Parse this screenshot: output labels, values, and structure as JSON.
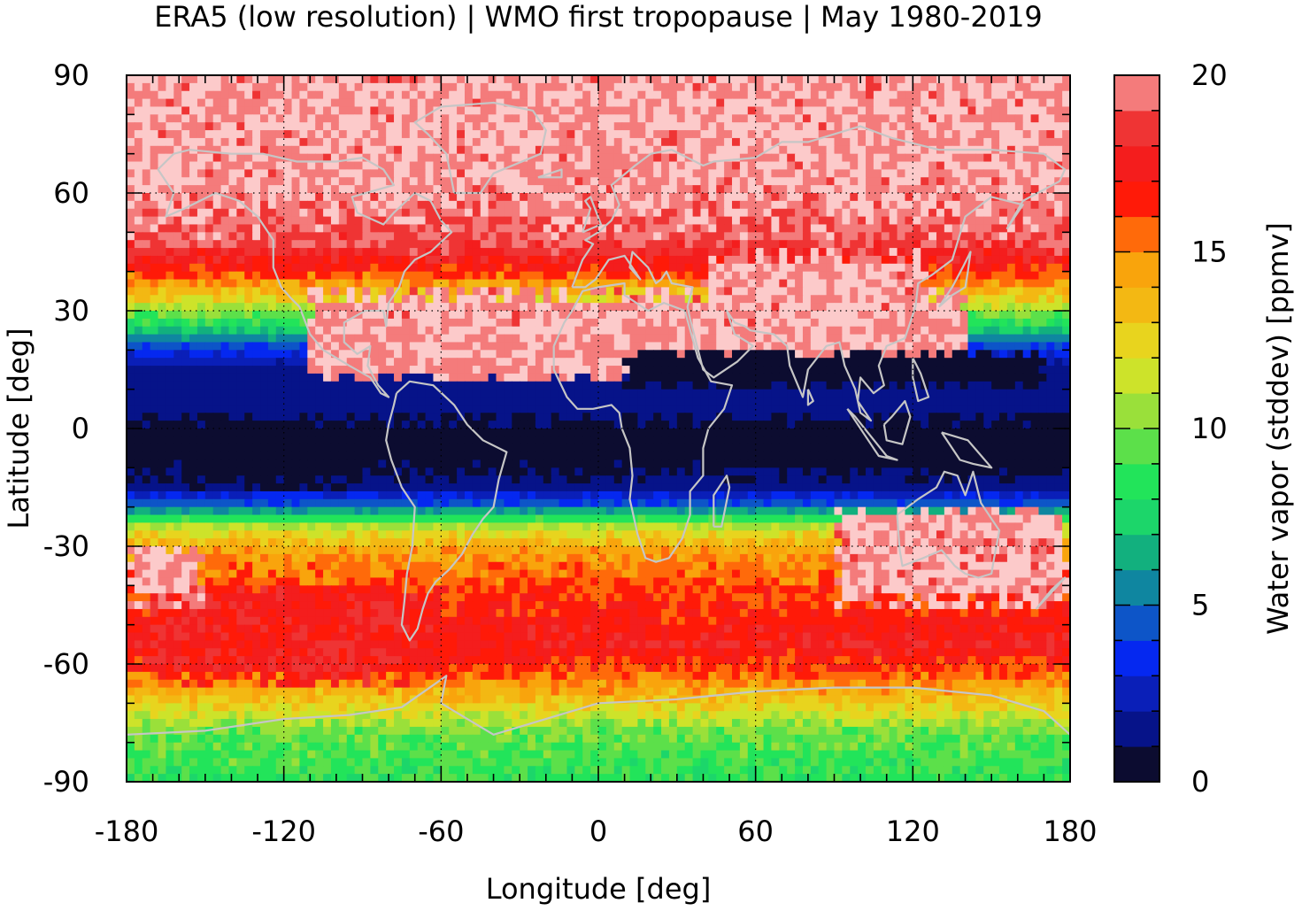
{
  "chart_data": {
    "type": "heatmap",
    "title": "ERA5 (low resolution) | WMO first tropopause | May 1980-2019",
    "xlabel": "Longitude [deg]",
    "ylabel": "Latitude [deg]",
    "xlim": [
      -180,
      180
    ],
    "ylim": [
      -90,
      90
    ],
    "xticks": [
      -180,
      -120,
      -60,
      0,
      60,
      120,
      180
    ],
    "yticks": [
      90,
      60,
      30,
      0,
      -30,
      -60,
      -90
    ],
    "grid": true,
    "coastlines": true,
    "colorbar": {
      "label": "Water vapor (stddev) [ppmv]",
      "range": [
        0,
        20
      ],
      "ticks": [
        20,
        15,
        10,
        5,
        0
      ],
      "levels": [
        {
          "from": 0,
          "to": 1,
          "color": "#0c0c30"
        },
        {
          "from": 1,
          "to": 2,
          "color": "#061389"
        },
        {
          "from": 2,
          "to": 3,
          "color": "#0a1fb8"
        },
        {
          "from": 3,
          "to": 4,
          "color": "#0528f0"
        },
        {
          "from": 4,
          "to": 5,
          "color": "#0d55c8"
        },
        {
          "from": 5,
          "to": 6,
          "color": "#0f86a0"
        },
        {
          "from": 6,
          "to": 7,
          "color": "#12b07e"
        },
        {
          "from": 7,
          "to": 8,
          "color": "#1cd66a"
        },
        {
          "from": 8,
          "to": 9,
          "color": "#22e45a"
        },
        {
          "from": 9,
          "to": 10,
          "color": "#5ce04a"
        },
        {
          "from": 10,
          "to": 11,
          "color": "#9ae03a"
        },
        {
          "from": 11,
          "to": 12,
          "color": "#cde32a"
        },
        {
          "from": 12,
          "to": 13,
          "color": "#e8d41e"
        },
        {
          "from": 13,
          "to": 14,
          "color": "#f3b813"
        },
        {
          "from": 14,
          "to": 15,
          "color": "#f9a40c"
        },
        {
          "from": 15,
          "to": 16,
          "color": "#ff6a0a"
        },
        {
          "from": 16,
          "to": 17,
          "color": "#ff1a08"
        },
        {
          "from": 17,
          "to": 18,
          "color": "#f41d1d"
        },
        {
          "from": 18,
          "to": 19,
          "color": "#ef3434"
        },
        {
          "from": 19,
          "to": 20,
          "color": "#f47b7b"
        },
        {
          "from": 20,
          "to": 21,
          "color": "#fccaca"
        }
      ]
    },
    "zonal_profile": [
      {
        "lat": 90,
        "value": 20
      },
      {
        "lat": 62,
        "value": 20
      },
      {
        "lat": 48,
        "value": 19
      },
      {
        "lat": 40,
        "value": 16.5
      },
      {
        "lat": 35,
        "value": 13.5
      },
      {
        "lat": 30,
        "value": 10.5
      },
      {
        "lat": 25,
        "value": 7
      },
      {
        "lat": 20,
        "value": 3.5
      },
      {
        "lat": 15,
        "value": 1.5
      },
      {
        "lat": 5,
        "value": 1.5
      },
      {
        "lat": 0,
        "value": 0.5
      },
      {
        "lat": -8,
        "value": 0.5
      },
      {
        "lat": -15,
        "value": 1.5
      },
      {
        "lat": -20,
        "value": 5
      },
      {
        "lat": -25,
        "value": 11
      },
      {
        "lat": -30,
        "value": 14
      },
      {
        "lat": -37,
        "value": 15.5
      },
      {
        "lat": -45,
        "value": 16.5
      },
      {
        "lat": -55,
        "value": 17.5
      },
      {
        "lat": -62,
        "value": 16
      },
      {
        "lat": -67,
        "value": 14
      },
      {
        "lat": -72,
        "value": 12
      },
      {
        "lat": -78,
        "value": 9.5
      },
      {
        "lat": -90,
        "value": 8.5
      }
    ],
    "regional_anomalies": [
      {
        "lon_min": -165,
        "lon_max": -120,
        "lat_min": 55,
        "lat_max": 78,
        "value": 17.5
      },
      {
        "lon_min": 5,
        "lon_max": 110,
        "lat_min": 40,
        "lat_max": 60,
        "value": 17
      },
      {
        "lon_min": 40,
        "lon_max": 125,
        "lat_min": 25,
        "lat_max": 45,
        "value": 20
      },
      {
        "lon_min": -110,
        "lon_max": 140,
        "lat_min": 12,
        "lat_max": 35,
        "value": 20
      },
      {
        "lon_min": -180,
        "lon_max": -150,
        "lat_min": -45,
        "lat_max": -30,
        "value": 20
      },
      {
        "lon_min": 90,
        "lon_max": 180,
        "lat_min": -45,
        "lat_max": -20,
        "value": 20
      },
      {
        "lon_min": -175,
        "lon_max": -60,
        "lat_min": -65,
        "lat_max": -40,
        "value": 17.5
      },
      {
        "lon_min": -160,
        "lon_max": -90,
        "lat_min": -15,
        "lat_max": -5,
        "value": 0.5
      },
      {
        "lon_min": 10,
        "lon_max": 170,
        "lat_min": 10,
        "lat_max": 20,
        "value": 0.5
      },
      {
        "lon_min": 95,
        "lon_max": 180,
        "lat_min": -12,
        "lat_max": 2,
        "value": 0.5
      }
    ]
  }
}
